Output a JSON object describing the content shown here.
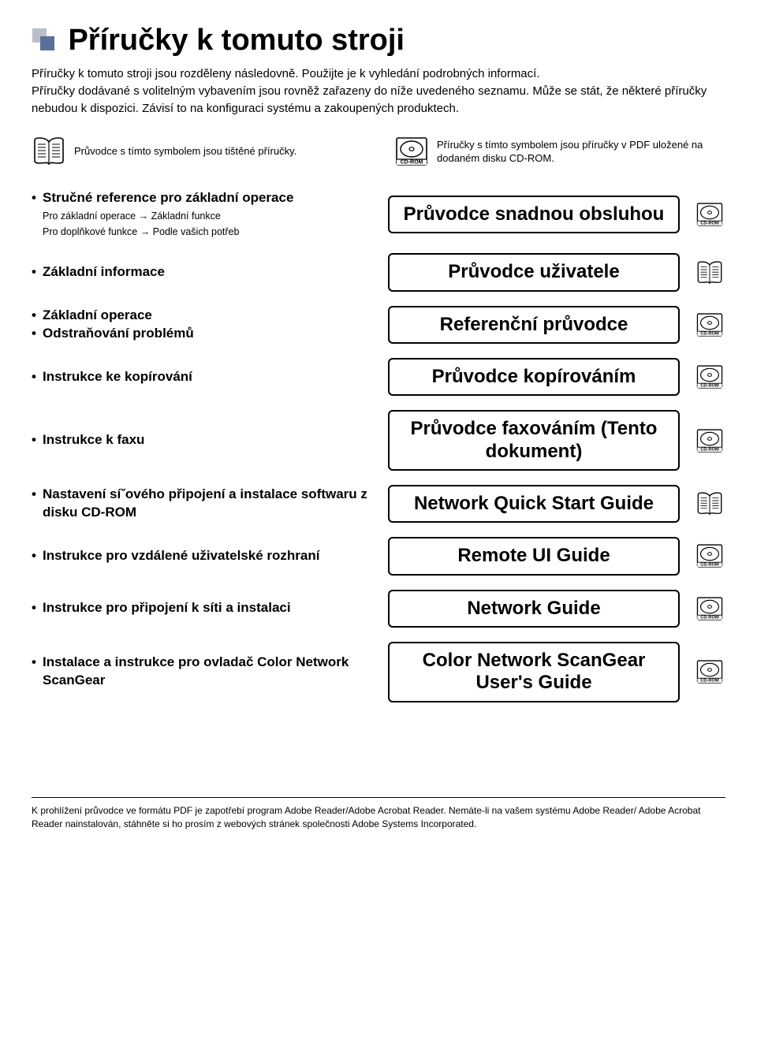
{
  "title": "Příručky k tomuto stroji",
  "intro": "Příručky k tomuto stroji jsou rozděleny následovně. Použijte je k vyhledání podrobných informací.\nPříručky dodávané s volitelným vybavením jsou rovněž zařazeny do níže uvedeného seznamu. Může se stát, že některé příručky nebudou k dispozici. Závisí to na konfiguraci systému a zakoupených produktech.",
  "legend": {
    "printed": "Průvodce s tímto symbolem jsou tištěné příručky.",
    "cdrom": "Příručky s tímto symbolem jsou příručky v PDF uložené na dodaném disku CD-ROM."
  },
  "cd_label": "CD-ROM",
  "rows": [
    {
      "left_items": [
        "Stručné reference pro základní operace"
      ],
      "subs": [
        "Pro základní operace → Základní funkce",
        "Pro doplňkové funkce → Podle vašich potřeb"
      ],
      "guide": "Průvodce snadnou obsluhou",
      "icon": "cd"
    },
    {
      "left_items": [
        "Základní informace"
      ],
      "subs": [],
      "guide": "Průvodce uživatele",
      "icon": "book"
    },
    {
      "left_items": [
        "Základní operace",
        "Odstraňování problémů"
      ],
      "subs": [],
      "guide": "Referenční průvodce",
      "icon": "cd"
    },
    {
      "left_items": [
        "Instrukce ke kopírování"
      ],
      "subs": [],
      "guide": "Průvodce kopírováním",
      "icon": "cd"
    },
    {
      "left_items": [
        "Instrukce k faxu"
      ],
      "subs": [],
      "guide": "Průvodce faxováním (Tento dokument)",
      "icon": "cd"
    },
    {
      "left_items": [
        "Nastavení síˇového připojení a instalace softwaru z disku CD-ROM"
      ],
      "subs": [],
      "guide": "Network Quick Start Guide",
      "icon": "book"
    },
    {
      "left_items": [
        "Instrukce pro vzdálené uživatelské rozhraní"
      ],
      "subs": [],
      "guide": "Remote UI Guide",
      "icon": "cd"
    },
    {
      "left_items": [
        "Instrukce pro připojení k síti a instalaci"
      ],
      "subs": [],
      "guide": "Network Guide",
      "icon": "cd"
    },
    {
      "left_items": [
        "Instalace a instrukce pro ovladač Color Network ScanGear"
      ],
      "subs": [],
      "guide": "Color Network ScanGear User's Guide",
      "icon": "cd"
    }
  ],
  "footer": "K prohlížení průvodce ve formátu PDF je zapotřebí program Adobe Reader/Adobe Acrobat Reader. Nemáte-li na vašem systému Adobe Reader/ Adobe Acrobat Reader nainstalován, stáhněte si ho prosím z webových stránek společnosti Adobe Systems Incorporated.",
  "colors": {
    "header_square_outer": "#b9bfc7",
    "header_square_inner": "#5a6f9a",
    "text": "#000000",
    "border": "#000000",
    "background": "#ffffff"
  }
}
